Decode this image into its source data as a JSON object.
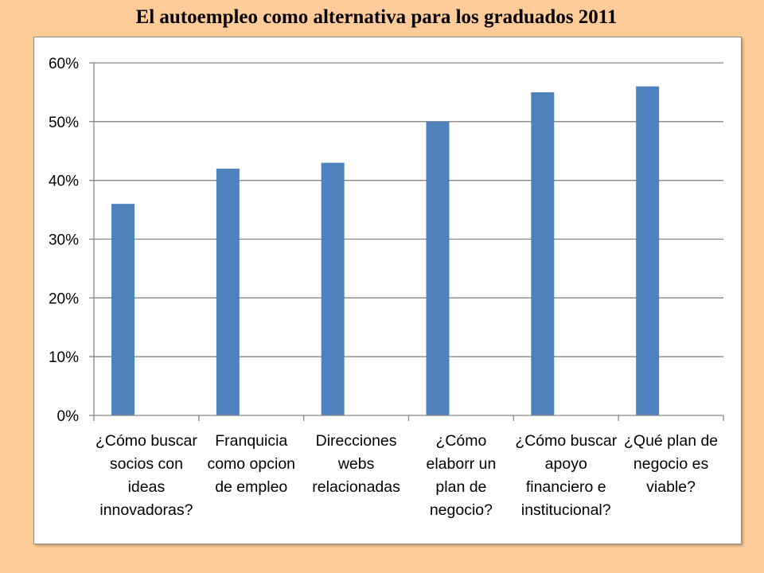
{
  "title": "El autoempleo como alternativa para los graduados 2011",
  "colors": {
    "background": "#FFCC99",
    "bar": "#4F81BD",
    "gridline": "#868686",
    "axis": "#868686"
  },
  "chart_data": {
    "type": "bar",
    "title": "El autoempleo como alternativa para los graduados 2011",
    "xlabel": "",
    "ylabel": "",
    "ylim": [
      0,
      0.6
    ],
    "yticks": [
      0,
      0.1,
      0.2,
      0.3,
      0.4,
      0.5,
      0.6
    ],
    "ytick_labels": [
      "0%",
      "10%",
      "20%",
      "30%",
      "40%",
      "50%",
      "60%"
    ],
    "grid": true,
    "legend": "none",
    "categories": [
      [
        "¿Cómo buscar",
        "socios con",
        "ideas",
        "innovadoras?"
      ],
      [
        "Franquicia",
        "como opcion",
        "de empleo"
      ],
      [
        "Direcciones",
        "webs",
        "relacionadas"
      ],
      [
        "¿Cómo",
        "elaborr un",
        "plan de",
        "negocio?"
      ],
      [
        "¿Cómo buscar",
        "apoyo",
        "financiero e",
        "institucional?"
      ],
      [
        "¿Qué plan de",
        "negocio es",
        "viable?"
      ]
    ],
    "values": [
      0.36,
      0.42,
      0.43,
      0.5,
      0.55,
      0.56
    ]
  }
}
